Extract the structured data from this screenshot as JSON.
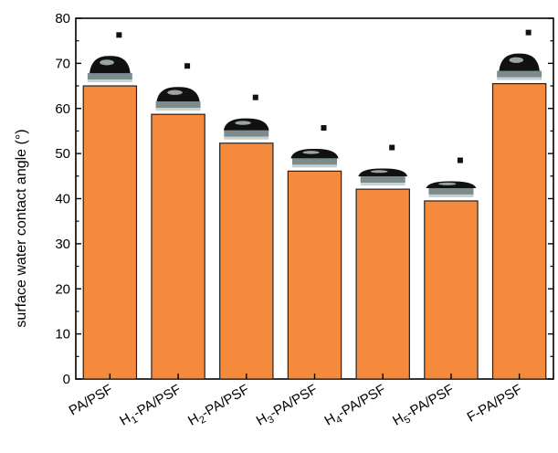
{
  "chart_data": {
    "type": "bar",
    "ylabel": "surface water contact angle (°)",
    "xlabel": "",
    "ylim": [
      0,
      80
    ],
    "yticks": [
      0,
      10,
      20,
      30,
      40,
      50,
      60,
      70,
      80
    ],
    "grid": false,
    "legend": "none",
    "bar_color": "#f58a3c",
    "categories": [
      {
        "base": "PA/PSF",
        "sub": ""
      },
      {
        "base": "H",
        "sub": "1",
        "rest": "-PA/PSF"
      },
      {
        "base": "H",
        "sub": "2",
        "rest": "-PA/PSF"
      },
      {
        "base": "H",
        "sub": "3",
        "rest": "-PA/PSF"
      },
      {
        "base": "H",
        "sub": "4",
        "rest": "-PA/PSF"
      },
      {
        "base": "H",
        "sub": "5",
        "rest": "-PA/PSF"
      },
      {
        "base": "F-PA/PSF",
        "sub": ""
      }
    ],
    "values": [
      65,
      58.7,
      52.3,
      46.1,
      42.1,
      39.5,
      65.5
    ],
    "droplet_images": "inset photographs of water droplets above each bar"
  }
}
